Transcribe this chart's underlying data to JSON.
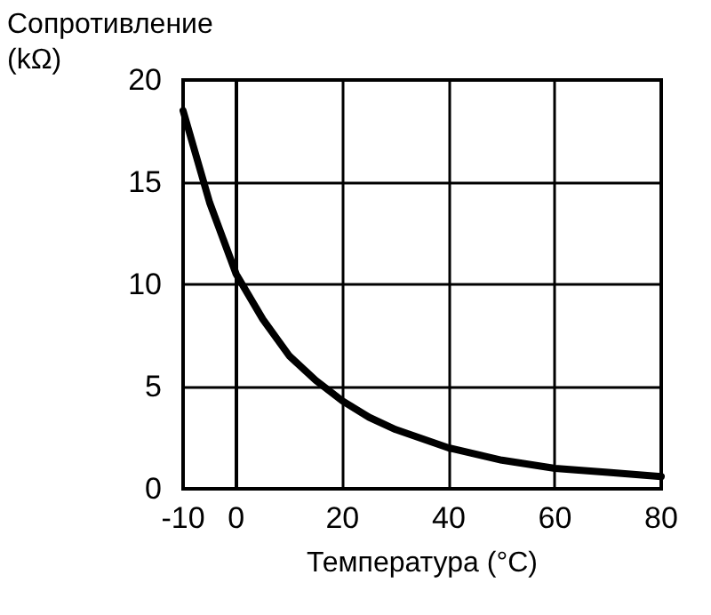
{
  "chart_data": {
    "type": "line",
    "ylabel": "Сопротивление\n(kΩ)",
    "xlabel": "Температура (°C)",
    "x": [
      -10,
      -5,
      0,
      5,
      10,
      15,
      20,
      25,
      30,
      40,
      50,
      60,
      70,
      80
    ],
    "series": [
      {
        "color": "#000000",
        "values": [
          18.5,
          14,
          10.5,
          8.3,
          6.5,
          5.3,
          4.3,
          3.5,
          2.9,
          2.0,
          1.4,
          1.0,
          0.8,
          0.6
        ]
      }
    ],
    "xlim": [
      -10,
      80
    ],
    "xticks": [
      -10,
      0,
      20,
      40,
      60,
      80
    ],
    "ylim": [
      0,
      20
    ],
    "yticks": [
      0,
      5,
      10,
      15,
      20
    ],
    "grid": true,
    "marker": "none",
    "line_style": "solid"
  }
}
